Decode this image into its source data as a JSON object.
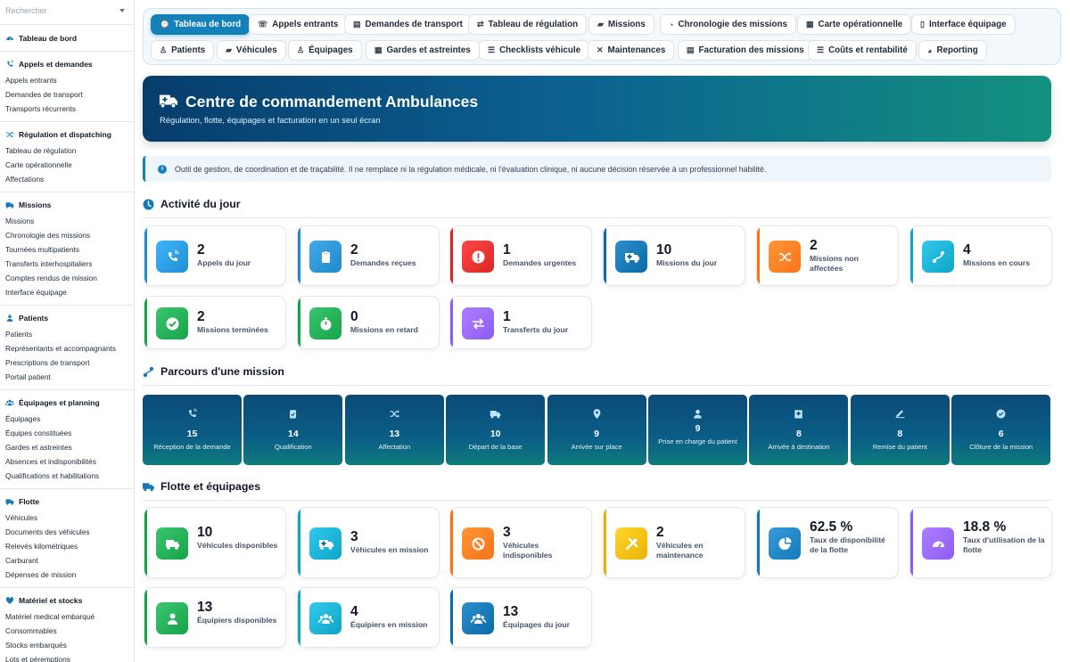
{
  "sidebar": {
    "search_placeholder": "Rechercher",
    "groups": [
      {
        "title": "Tableau de bord",
        "icon": "dashboard-icon",
        "items": []
      },
      {
        "title": "Appels et demandes",
        "icon": "phone-icon",
        "items": [
          "Appels entrants",
          "Demandes de transport",
          "Transports récurrents"
        ]
      },
      {
        "title": "Régulation et dispatching",
        "icon": "shuffle-icon",
        "items": [
          "Tableau de régulation",
          "Carte opérationnelle",
          "Affectations"
        ]
      },
      {
        "title": "Missions",
        "icon": "truck-icon",
        "items": [
          "Missions",
          "Chronologie des missions",
          "Tournées multipatients",
          "Transferts interhospitaliers",
          "Comptes rendus de mission",
          "Interface équipage"
        ]
      },
      {
        "title": "Patients",
        "icon": "user-icon",
        "items": [
          "Patients",
          "Représentants et accompagnants",
          "Prescriptions de transport",
          "Portail patient"
        ]
      },
      {
        "title": "Équipages et planning",
        "icon": "team-icon",
        "items": [
          "Équipages",
          "Équipes constituées",
          "Gardes et astreintes",
          "Absences et indisponibilités",
          "Qualifications et habilitations"
        ]
      },
      {
        "title": "Flotte",
        "icon": "truck-icon",
        "items": [
          "Véhicules",
          "Documents des véhicules",
          "Relevés kilométriques",
          "Carburant",
          "Dépenses de mission"
        ]
      },
      {
        "title": "Matériel et stocks",
        "icon": "heart-icon",
        "items": [
          "Matériel medical embarqué",
          "Consommables",
          "Stocks embarqués",
          "Lots et péremptions"
        ]
      }
    ]
  },
  "tabs": [
    {
      "label": "Tableau de bord",
      "icon": "⌚",
      "active": true
    },
    {
      "label": "Appels entrants",
      "icon": "☏"
    },
    {
      "label": "Demandes de transport",
      "icon": "▤"
    },
    {
      "label": "Tableau de régulation",
      "icon": "⇄"
    },
    {
      "label": "Missions",
      "icon": "▰"
    },
    {
      "label": "Chronologie des missions",
      "icon": "◔"
    },
    {
      "label": "Carte opérationnelle",
      "icon": "▦"
    },
    {
      "label": "Interface équipage",
      "icon": "▯"
    },
    {
      "label": "Patients",
      "icon": "♙"
    },
    {
      "label": "Véhicules",
      "icon": "▰"
    },
    {
      "label": "Équipages",
      "icon": "♙"
    },
    {
      "label": "Gardes et astreintes",
      "icon": "▦"
    },
    {
      "label": "Checklists véhicule",
      "icon": "☰"
    },
    {
      "label": "Maintenances",
      "icon": "✕"
    },
    {
      "label": "Facturation des missions",
      "icon": "▤"
    },
    {
      "label": "Coûts et rentabilité",
      "icon": "☰"
    },
    {
      "label": "Reporting",
      "icon": "◕"
    }
  ],
  "hero": {
    "title": "Centre de commandement Ambulances",
    "subtitle": "Régulation, flotte, équipages et facturation en un seul écran"
  },
  "notice": "Outil de gestion, de coordination et de traçabilité. Il ne remplace ni la régulation médicale, ni l'évaluation clinique, ni aucune décision réservée à un professionnel habilité.",
  "activity": {
    "title": "Activité du jour",
    "cards": [
      {
        "value": "2",
        "label": "Appels du jour",
        "color": "#1e90d6",
        "icon": "phone-icon"
      },
      {
        "value": "2",
        "label": "Demandes reçues",
        "color": "#1e88c9",
        "icon": "clipboard-icon"
      },
      {
        "value": "1",
        "label": "Demandes urgentes",
        "color": "#dc2626",
        "icon": "alert-icon"
      },
      {
        "value": "10",
        "label": "Missions du jour",
        "color": "#0b6aa8",
        "icon": "ambulance-icon"
      },
      {
        "value": "2",
        "label": "Missions non affectées",
        "color": "#f97316",
        "icon": "shuffle-icon"
      },
      {
        "value": "4",
        "label": "Missions en cours",
        "color": "#0ea5c9",
        "icon": "route-icon"
      },
      {
        "value": "2",
        "label": "Missions terminées",
        "color": "#16a34a",
        "icon": "check-icon"
      },
      {
        "value": "0",
        "label": "Missions en retard",
        "color": "#16a34a",
        "icon": "stopwatch-icon"
      },
      {
        "value": "1",
        "label": "Transferts du jour",
        "color": "#8b5cf6",
        "icon": "transfer-icon"
      }
    ]
  },
  "journey": {
    "title": "Parcours d'une mission",
    "steps": [
      {
        "value": "15",
        "label": "Réception de la demande",
        "icon": "phone-icon"
      },
      {
        "value": "14",
        "label": "Qualification",
        "icon": "clipboard-check-icon"
      },
      {
        "value": "13",
        "label": "Affectation",
        "icon": "shuffle-icon"
      },
      {
        "value": "10",
        "label": "Départ de la base",
        "icon": "truck-icon"
      },
      {
        "value": "9",
        "label": "Arrivée sur place",
        "icon": "pin-icon"
      },
      {
        "value": "9",
        "label": "Prise en charge du patient",
        "icon": "user-icon"
      },
      {
        "value": "8",
        "label": "Arrivée à destination",
        "icon": "hospital-icon"
      },
      {
        "value": "8",
        "label": "Remise du patient",
        "icon": "signature-icon"
      },
      {
        "value": "6",
        "label": "Clôture de la mission",
        "icon": "check-circle-icon"
      }
    ]
  },
  "fleet": {
    "title": "Flotte et équipages",
    "cards": [
      {
        "value": "10",
        "label": "Véhicules disponibles",
        "color": "#16a34a",
        "icon": "truck-icon"
      },
      {
        "value": "3",
        "label": "Véhicules en mission",
        "color": "#0ea5c9",
        "icon": "ambulance-icon"
      },
      {
        "value": "3",
        "label": "Véhicules indisponibles",
        "color": "#f97316",
        "icon": "ban-icon"
      },
      {
        "value": "2",
        "label": "Véhicules en maintenance",
        "color": "#eab308",
        "icon": "tools-icon"
      },
      {
        "value": "62.5 %",
        "label": "Taux de disponibilité de la flotte",
        "color": "#1479b8",
        "icon": "pie-icon"
      },
      {
        "value": "18.8 %",
        "label": "Taux d'utilisation de la flotte",
        "color": "#8b5cf6",
        "icon": "gauge-icon"
      },
      {
        "value": "13",
        "label": "Équipiers disponibles",
        "color": "#16a34a",
        "icon": "user-icon"
      },
      {
        "value": "4",
        "label": "Équipiers en mission",
        "color": "#0ea5c9",
        "icon": "team-icon"
      },
      {
        "value": "13",
        "label": "Équipages du jour",
        "color": "#0b6aa8",
        "icon": "team-icon"
      }
    ]
  }
}
